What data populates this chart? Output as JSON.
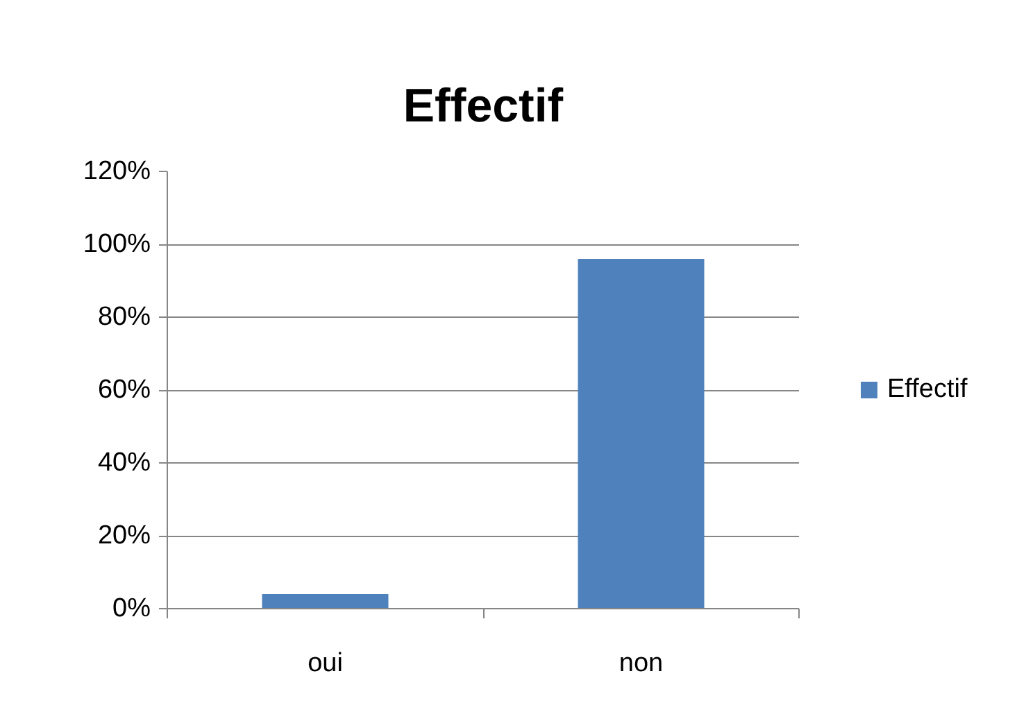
{
  "chart_data": {
    "type": "bar",
    "title": "Effectif",
    "categories": [
      "oui",
      "non"
    ],
    "series": [
      {
        "name": "Effectif",
        "color": "#4f81bd",
        "values": [
          4,
          96
        ]
      }
    ],
    "ylim": [
      0,
      120
    ],
    "yticks": [
      {
        "value": 0,
        "label": "0%"
      },
      {
        "value": 20,
        "label": "20%"
      },
      {
        "value": 40,
        "label": "40%"
      },
      {
        "value": 60,
        "label": "60%"
      },
      {
        "value": 80,
        "label": "80%"
      },
      {
        "value": 100,
        "label": "100%"
      },
      {
        "value": 120,
        "label": "120%"
      }
    ],
    "grid": "y",
    "legend": "right"
  }
}
